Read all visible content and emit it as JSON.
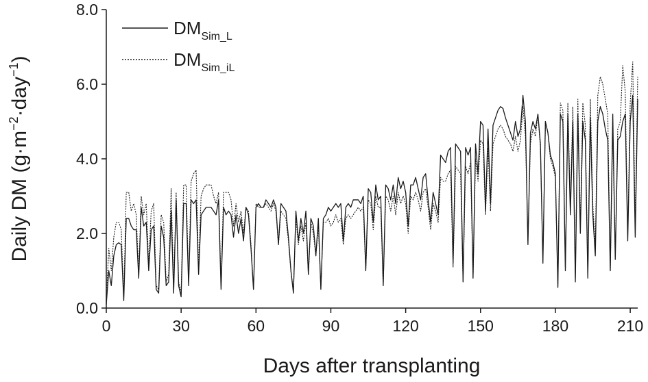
{
  "chart_data": {
    "type": "line",
    "xlabel": "Days after transplanting",
    "ylabel_parts": {
      "a": "Daily DM (g·m",
      "b": "−2",
      "c": "·day",
      "d": "−1",
      "e": ")"
    },
    "xlim": [
      0,
      213
    ],
    "ylim": [
      0,
      8
    ],
    "xticks": [
      0,
      30,
      60,
      90,
      120,
      150,
      180,
      210
    ],
    "xtick_labels": [
      "0",
      "30",
      "60",
      "90",
      "120",
      "150",
      "180",
      "210"
    ],
    "yticks": [
      0,
      2,
      4,
      6,
      8
    ],
    "ytick_labels": [
      "0.0",
      "2.0",
      "4.0",
      "6.0",
      "8.0"
    ],
    "grid": false,
    "legend_position": "top-left",
    "series": [
      {
        "name": "DM",
        "name_sub": "Sim_L",
        "style": "solid",
        "x": [
          0,
          1,
          2,
          3,
          4,
          5,
          6,
          7,
          8,
          9,
          10,
          11,
          12,
          13,
          14,
          15,
          16,
          17,
          18,
          19,
          20,
          21,
          22,
          23,
          24,
          25,
          26,
          27,
          28,
          29,
          30,
          31,
          32,
          33,
          34,
          35,
          36,
          37,
          38,
          39,
          40,
          41,
          42,
          43,
          44,
          45,
          46,
          47,
          48,
          49,
          50,
          51,
          52,
          53,
          54,
          55,
          56,
          57,
          58,
          59,
          60,
          61,
          62,
          63,
          64,
          65,
          66,
          67,
          68,
          69,
          70,
          71,
          72,
          73,
          74,
          75,
          76,
          77,
          78,
          79,
          80,
          81,
          82,
          83,
          84,
          85,
          86,
          87,
          88,
          89,
          90,
          91,
          92,
          93,
          94,
          95,
          96,
          97,
          98,
          99,
          100,
          101,
          102,
          103,
          104,
          105,
          106,
          107,
          108,
          109,
          110,
          111,
          112,
          113,
          114,
          115,
          116,
          117,
          118,
          119,
          120,
          121,
          122,
          123,
          124,
          125,
          126,
          127,
          128,
          129,
          130,
          131,
          132,
          133,
          134,
          135,
          136,
          137,
          138,
          139,
          140,
          141,
          142,
          143,
          144,
          145,
          146,
          147,
          148,
          149,
          150,
          151,
          152,
          153,
          154,
          155,
          156,
          157,
          158,
          159,
          160,
          161,
          162,
          163,
          164,
          165,
          166,
          167,
          168,
          169,
          170,
          171,
          172,
          173,
          174,
          175,
          176,
          177,
          178,
          179,
          180,
          181,
          182,
          183,
          184,
          185,
          186,
          187,
          188,
          189,
          190,
          191,
          192,
          193,
          194,
          195,
          196,
          197,
          198,
          199,
          200,
          201,
          202,
          203,
          204,
          205,
          206,
          207,
          208,
          209,
          210,
          211,
          212,
          213
        ],
        "values": [
          0.1,
          1.0,
          0.6,
          1.4,
          1.7,
          1.75,
          1.7,
          0.2,
          2.4,
          2.4,
          2.2,
          2.1,
          2.1,
          0.8,
          2.7,
          2.2,
          2.3,
          1.0,
          2.1,
          2.2,
          0.5,
          0.4,
          2.2,
          1.9,
          0.6,
          0.7,
          2.6,
          0.4,
          2.9,
          0.6,
          0.3,
          2.8,
          2.8,
          0.6,
          2.9,
          2.8,
          2.9,
          0.9,
          2.5,
          2.6,
          2.7,
          2.7,
          2.7,
          2.6,
          2.5,
          2.9,
          0.5,
          2.7,
          2.5,
          2.6,
          2.5,
          1.9,
          2.5,
          2.0,
          2.4,
          1.8,
          2.7,
          2.5,
          1.6,
          0.5,
          2.7,
          2.8,
          2.7,
          2.7,
          2.9,
          2.8,
          2.7,
          2.9,
          2.7,
          1.7,
          2.8,
          2.7,
          2.6,
          1.9,
          1.0,
          0.4,
          2.6,
          1.8,
          2.4,
          2.0,
          2.6,
          0.9,
          2.4,
          2.2,
          1.4,
          2.4,
          0.5,
          2.4,
          2.5,
          2.7,
          2.6,
          2.7,
          2.8,
          2.7,
          2.8,
          1.8,
          2.7,
          2.8,
          2.7,
          2.9,
          2.9,
          2.9,
          2.8,
          3.0,
          1.0,
          3.2,
          3.1,
          2.3,
          3.3,
          2.9,
          3.0,
          0.6,
          3.3,
          3.2,
          2.9,
          3.3,
          2.8,
          3.5,
          3.2,
          3.4,
          3.1,
          2.2,
          3.3,
          3.3,
          3.5,
          3.2,
          2.9,
          3.5,
          3.6,
          2.9,
          2.3,
          3.1,
          2.8,
          2.5,
          4.1,
          4.0,
          3.9,
          4.2,
          4.3,
          1.2,
          4.4,
          4.3,
          4.2,
          0.7,
          4.3,
          4.1,
          4.3,
          0.8,
          4.4,
          3.6,
          5.0,
          4.9,
          2.6,
          4.8,
          2.8,
          4.9,
          5.1,
          5.3,
          5.4,
          5.35,
          5.1,
          4.9,
          4.7,
          4.5,
          5.0,
          4.6,
          4.8,
          5.7,
          5.0,
          1.7,
          4.7,
          5.0,
          4.8,
          5.2,
          4.4,
          1.2,
          5.0,
          4.7,
          4.1,
          3.9,
          3.6,
          0.55,
          5.2,
          5.0,
          1.0,
          5.2,
          2.5,
          5.0,
          0.7,
          5.2,
          2.0,
          5.0,
          4.5,
          0.8,
          5.1,
          2.5,
          1.4,
          5.0,
          5.4,
          5.2,
          4.8,
          4.5,
          1.0,
          5.2,
          1.3,
          4.5,
          4.6,
          5.0,
          5.2,
          1.8,
          5.0,
          5.7,
          1.9,
          5.6
        ]
      },
      {
        "name": "DM",
        "name_sub": "Sim_iL",
        "style": "dotted",
        "x": [
          0,
          1,
          2,
          3,
          4,
          5,
          6,
          7,
          8,
          9,
          10,
          11,
          12,
          13,
          14,
          15,
          16,
          17,
          18,
          19,
          20,
          21,
          22,
          23,
          24,
          25,
          26,
          27,
          28,
          29,
          30,
          31,
          32,
          33,
          34,
          35,
          36,
          37,
          38,
          39,
          40,
          41,
          42,
          43,
          44,
          45,
          46,
          47,
          48,
          49,
          50,
          51,
          52,
          53,
          54,
          55,
          56,
          57,
          58,
          59,
          60,
          61,
          62,
          63,
          64,
          65,
          66,
          67,
          68,
          69,
          70,
          71,
          72,
          73,
          74,
          75,
          76,
          77,
          78,
          79,
          80,
          81,
          82,
          83,
          84,
          85,
          86,
          87,
          88,
          89,
          90,
          91,
          92,
          93,
          94,
          95,
          96,
          97,
          98,
          99,
          100,
          101,
          102,
          103,
          104,
          105,
          106,
          107,
          108,
          109,
          110,
          111,
          112,
          113,
          114,
          115,
          116,
          117,
          118,
          119,
          120,
          121,
          122,
          123,
          124,
          125,
          126,
          127,
          128,
          129,
          130,
          131,
          132,
          133,
          134,
          135,
          136,
          137,
          138,
          139,
          140,
          141,
          142,
          143,
          144,
          145,
          146,
          147,
          148,
          149,
          150,
          151,
          152,
          153,
          154,
          155,
          156,
          157,
          158,
          159,
          160,
          161,
          162,
          163,
          164,
          165,
          166,
          167,
          168,
          169,
          170,
          171,
          172,
          173,
          174,
          175,
          176,
          177,
          178,
          179,
          180,
          181,
          182,
          183,
          184,
          185,
          186,
          187,
          188,
          189,
          190,
          191,
          192,
          193,
          194,
          195,
          196,
          197,
          198,
          199,
          200,
          201,
          202,
          203,
          204,
          205,
          206,
          207,
          208,
          209,
          210,
          211,
          212,
          213
        ],
        "values": [
          0.2,
          1.6,
          1.0,
          1.9,
          2.3,
          2.3,
          2.1,
          0.3,
          3.1,
          3.1,
          2.6,
          2.8,
          2.5,
          0.9,
          3.0,
          2.5,
          2.8,
          1.2,
          2.6,
          2.8,
          0.6,
          0.5,
          2.5,
          2.3,
          0.7,
          0.9,
          3.2,
          0.5,
          3.1,
          0.7,
          0.4,
          3.3,
          3.3,
          0.7,
          3.4,
          3.6,
          3.7,
          1.1,
          3.0,
          3.2,
          3.3,
          3.3,
          3.3,
          3.0,
          2.8,
          3.1,
          0.6,
          3.1,
          3.1,
          3.1,
          2.9,
          2.2,
          2.8,
          2.3,
          2.6,
          2.0,
          2.7,
          2.6,
          1.7,
          0.5,
          2.8,
          2.7,
          2.7,
          2.7,
          2.8,
          2.7,
          2.6,
          2.8,
          2.6,
          1.7,
          2.6,
          2.5,
          2.4,
          1.8,
          1.0,
          0.45,
          2.4,
          1.7,
          2.2,
          1.8,
          2.3,
          0.9,
          2.3,
          2.0,
          1.4,
          2.2,
          0.5,
          2.3,
          2.3,
          2.4,
          2.2,
          2.3,
          2.5,
          2.3,
          2.4,
          1.7,
          2.4,
          2.5,
          2.4,
          2.5,
          2.6,
          2.7,
          2.6,
          2.7,
          1.0,
          2.9,
          2.8,
          2.1,
          3.0,
          2.7,
          2.7,
          0.6,
          3.0,
          2.9,
          2.6,
          3.0,
          2.5,
          3.1,
          2.8,
          3.0,
          2.8,
          2.0,
          3.0,
          2.9,
          3.1,
          2.9,
          2.6,
          3.1,
          3.2,
          2.7,
          2.1,
          2.8,
          2.6,
          2.3,
          3.5,
          3.4,
          3.4,
          3.6,
          3.7,
          1.1,
          3.8,
          3.7,
          3.6,
          0.7,
          3.8,
          3.6,
          3.9,
          0.8,
          4.0,
          3.4,
          4.5,
          4.4,
          2.5,
          4.3,
          2.6,
          4.4,
          4.6,
          4.8,
          4.9,
          4.8,
          4.6,
          4.5,
          4.4,
          4.2,
          4.6,
          4.2,
          4.5,
          5.4,
          4.6,
          1.8,
          4.4,
          4.8,
          4.6,
          5.2,
          4.3,
          1.3,
          5.0,
          4.7,
          4.0,
          3.8,
          3.5,
          0.6,
          5.5,
          5.3,
          1.1,
          5.5,
          2.7,
          5.4,
          0.8,
          5.6,
          2.2,
          5.5,
          4.9,
          0.9,
          5.6,
          2.8,
          1.6,
          5.7,
          6.2,
          6.0,
          5.6,
          5.2,
          1.0,
          4.7,
          1.4,
          4.8,
          5.0,
          6.5,
          5.8,
          2.0,
          5.5,
          6.6,
          2.2,
          6.2
        ]
      }
    ]
  }
}
